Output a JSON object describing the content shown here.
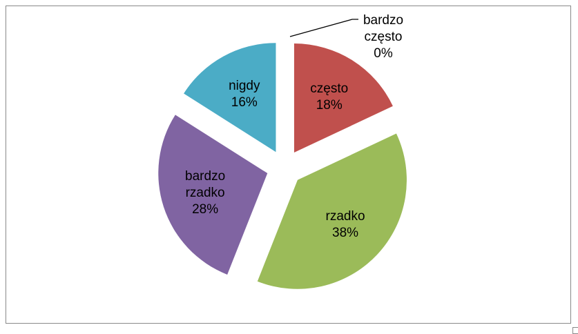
{
  "chart_data": {
    "type": "pie",
    "categories": [
      "bardzo często",
      "często",
      "rzadko",
      "bardzo rzadko",
      "nigdy"
    ],
    "values": [
      0,
      18,
      38,
      28,
      16
    ],
    "value_labels": [
      "0%",
      "18%",
      "38%",
      "28%",
      "16%"
    ],
    "colors": [
      "#4f81bd",
      "#c0504d",
      "#9bbb59",
      "#8064a2",
      "#4bacc6"
    ]
  }
}
